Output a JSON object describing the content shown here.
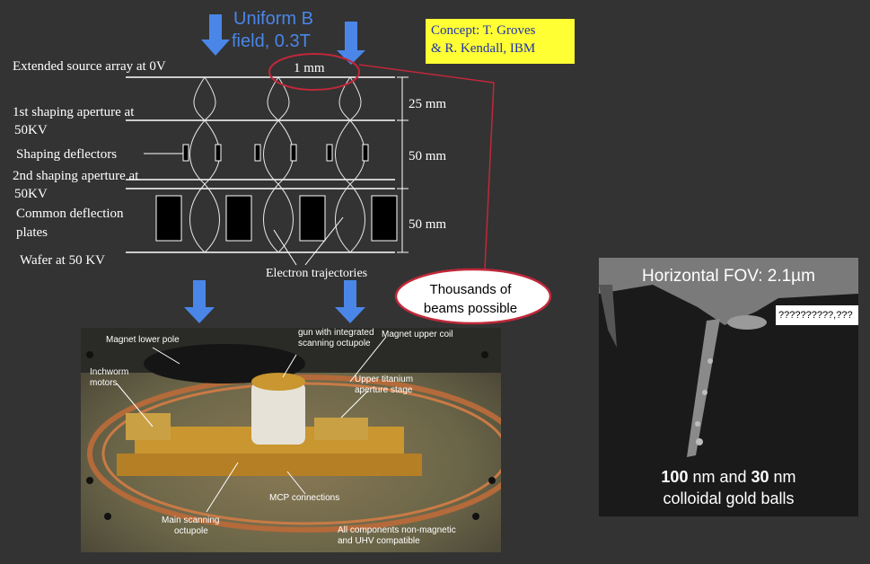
{
  "header": {
    "field_line1": "Uniform B",
    "field_line2": "field, 0.3T"
  },
  "concept": {
    "line1": "Concept: T. Groves",
    "line2": "& R. Kendall, IBM"
  },
  "left_labels": {
    "source": "Extended source array at 0V",
    "aperture1_a": "1st shaping aperture at",
    "aperture1_b": "50KV",
    "deflectors": "Shaping deflectors",
    "aperture2_a": "2nd shaping aperture at",
    "aperture2_b": "50KV",
    "plates_a": "Common deflection",
    "plates_b": "plates",
    "wafer": "Wafer at 50 KV"
  },
  "dimensions": {
    "pitch": "1 mm",
    "d1": "25 mm",
    "d2": "50 mm",
    "d3": "50 mm"
  },
  "trajectories_label": "Electron trajectories",
  "callout": {
    "line1": "Thousands of",
    "line2": "beams possible"
  },
  "photo": {
    "magnet_lower": "Magnet lower pole",
    "octupole_a": "gun with integrated",
    "octupole_b": "scanning octupole",
    "magnet_upper": "Magnet upper coil",
    "inchworm_a": "Inchworm",
    "inchworm_b": "motors",
    "titanium_a": "Upper titanium",
    "titanium_b": "aperture stage",
    "mcp": "MCP connections",
    "main_a": "Main scanning",
    "main_b": "octupole",
    "nonmag_a": "All components non-magnetic",
    "nonmag_b": "and UHV compatible"
  },
  "sem": {
    "title": "Horizontal FOV: 2.1µm",
    "callout": "??????????,???",
    "cap_num1": "100",
    "cap_mid": " nm and ",
    "cap_num2": "30",
    "cap_end": " nm",
    "cap_line2": "colloidal gold balls"
  },
  "colors": {
    "background": "#333333",
    "arrow": "#4a86e8",
    "title_text": "#4a86e8",
    "callout_border": "#c0283a",
    "concept_bg": "#ffff33",
    "concept_text": "#2233aa"
  }
}
